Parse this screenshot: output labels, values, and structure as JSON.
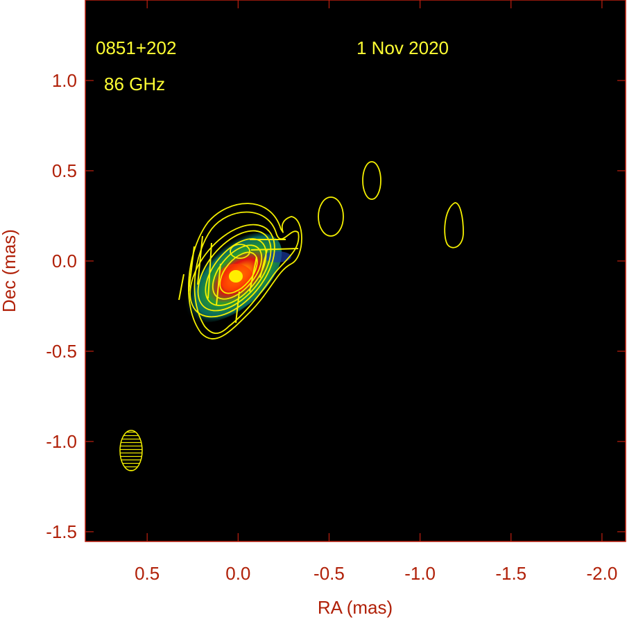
{
  "chart_data": {
    "type": "image",
    "annotations": [
      "0851+202",
      "1 Nov 2020",
      "86 GHz"
    ],
    "xlabel": "RA (mas)",
    "ylabel": "Dec (mas)",
    "xlim": [
      0.84,
      -2.13
    ],
    "xticks": [
      0.5,
      {
        "value": 0,
        "label": "0.0"
      },
      -0.5,
      {
        "value": -1,
        "label": "-1.0"
      },
      -1.5,
      {
        "value": -2,
        "label": "-2.0"
      }
    ],
    "ylim": [
      -1.554,
      1.446
    ],
    "yticks": [
      {
        "value": 1,
        "label": "1.0"
      },
      0.5,
      {
        "value": 0,
        "label": "0.0"
      },
      -0.5,
      {
        "value": -1,
        "label": "-1.0"
      },
      -1.5
    ],
    "grid": false
  }
}
